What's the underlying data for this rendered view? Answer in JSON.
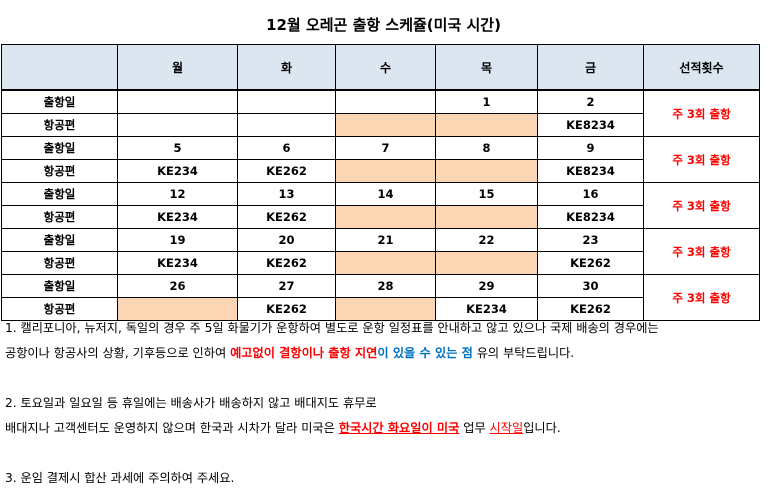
{
  "title": "12월 오레곤 출항 스케쥴(미국 시간)",
  "header": {
    "days": [
      "월",
      "화",
      "수",
      "목",
      "금"
    ],
    "freq": "선적횟수"
  },
  "labels": {
    "dep": "출항일",
    "flight": "항공편"
  },
  "weeks": [
    {
      "dates": [
        "",
        "",
        "",
        "1",
        "2"
      ],
      "flights": [
        "",
        "",
        "",
        "",
        "KE8234"
      ],
      "peach": [
        false,
        false,
        true,
        true,
        false
      ],
      "freq": "주 3회 출항"
    },
    {
      "dates": [
        "5",
        "6",
        "7",
        "8",
        "9"
      ],
      "flights": [
        "KE234",
        "KE262",
        "",
        "",
        "KE8234"
      ],
      "peach": [
        false,
        false,
        true,
        true,
        false
      ],
      "freq": "주 3회 출항"
    },
    {
      "dates": [
        "12",
        "13",
        "14",
        "15",
        "16"
      ],
      "flights": [
        "KE234",
        "KE262",
        "",
        "",
        "KE8234"
      ],
      "peach": [
        false,
        false,
        true,
        true,
        false
      ],
      "freq": "주 3회 출항"
    },
    {
      "dates": [
        "19",
        "20",
        "21",
        "22",
        "23"
      ],
      "flights": [
        "KE234",
        "KE262",
        "",
        "",
        "KE262"
      ],
      "peach": [
        false,
        false,
        true,
        true,
        false
      ],
      "freq": "주 3회 출항"
    },
    {
      "dates": [
        "26",
        "27",
        "28",
        "29",
        "30"
      ],
      "flights": [
        "",
        "KE262",
        "",
        "KE234",
        "KE262"
      ],
      "peach": [
        true,
        false,
        true,
        false,
        false
      ],
      "freq": "주 3회 출항"
    }
  ],
  "notes": {
    "n1_line1": "1. 캘리포니아, 뉴저지, 독일의 경우 주 5일 화물기가 운항하여 별도로 운항 일정표를 안내하고 않고 있으나 국제 배송의 경우에는",
    "n1_line2_a": "공항이나 항공사의 상황, 기후등으로 인하여 ",
    "n1_line2_red": "예고없이 결항이나 출항 지연",
    "n1_line2_blue": "이 있을 수 있는 점",
    "n1_line2_b": " 유의 부탁드립니다.",
    "n2_line1": "2. 토요일과 일요일 등 휴일에는 배송사가 배송하지 않고 배대지도 휴무로",
    "n2_line2_a": "배대지나 고객센터도 운영하지 않으며 한국과 시차가 달라 미국은 ",
    "n2_line2_red": "한국시간 화요일이 미국",
    "n2_line2_mid": " 업무 ",
    "n2_line2_red2": "시작일",
    "n2_line2_b": "입니다.",
    "n3": "3. 운임 결제시 합산 과세에 주의하여 주세요."
  }
}
